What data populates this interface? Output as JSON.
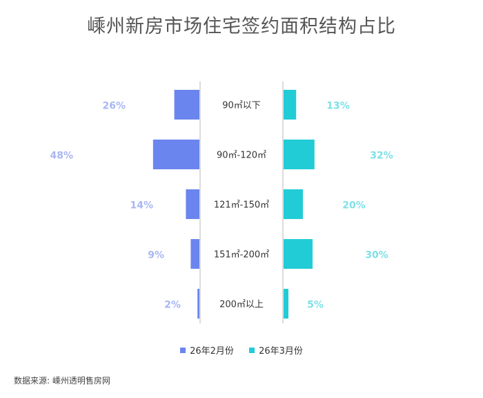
{
  "title": "嵊州新房市场住宅签约面积结构占比",
  "source": "数据来源: 嵊州透明售房网",
  "colors": {
    "left": "#6b85ee",
    "right": "#22ccd6",
    "left_label": "#a7b6f4",
    "right_label": "#7fe0e6",
    "axis": "#cfcfcf"
  },
  "chart_data": {
    "type": "bar",
    "categories": [
      "90㎡以下",
      "90㎡-120㎡",
      "121㎡-150㎡",
      "151㎡-200㎡",
      "200㎡以上"
    ],
    "series": [
      {
        "name": "26年2月份",
        "values": [
          26,
          48,
          14,
          9,
          2
        ],
        "labels": [
          "26%",
          "48%",
          "14%",
          "9%",
          "2%"
        ],
        "color": "#6b85ee"
      },
      {
        "name": "26年3月份",
        "values": [
          13,
          32,
          20,
          30,
          5
        ],
        "labels": [
          "13%",
          "32%",
          "20%",
          "30%",
          "5%"
        ],
        "color": "#22ccd6"
      }
    ],
    "orientation": "horizontal-butterfly",
    "unit": "%",
    "legend": "bottom-center"
  }
}
